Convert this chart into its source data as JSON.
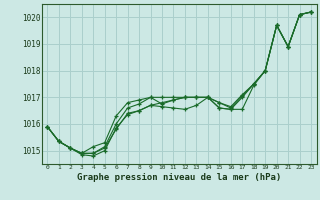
{
  "title": "Graphe pression niveau de la mer (hPa)",
  "xlabel": "Graphe pression niveau de la mer (hPa)",
  "x_ticks": [
    0,
    1,
    2,
    3,
    4,
    5,
    6,
    7,
    8,
    9,
    10,
    11,
    12,
    13,
    14,
    15,
    16,
    17,
    18,
    19,
    20,
    21,
    22,
    23
  ],
  "ylim": [
    1014.5,
    1020.5
  ],
  "xlim": [
    -0.5,
    23.5
  ],
  "yticks": [
    1015,
    1016,
    1017,
    1018,
    1019,
    1020
  ],
  "background_color": "#cce8e4",
  "grid_color": "#aacfcc",
  "line_color": "#1a6b2a",
  "series": [
    [
      1015.9,
      1015.35,
      1015.1,
      1014.9,
      1014.9,
      1015.1,
      1015.8,
      1016.4,
      1016.5,
      1016.7,
      1016.8,
      1016.9,
      1017.0,
      1017.0,
      1017.0,
      1016.8,
      1016.65,
      1017.1,
      1017.5,
      1018.0,
      1019.7,
      1018.9,
      1020.1,
      1020.2
    ],
    [
      1015.9,
      1015.35,
      1015.1,
      1014.85,
      1014.8,
      1015.0,
      1015.85,
      1016.35,
      1016.5,
      1016.7,
      1016.65,
      1016.6,
      1016.55,
      1016.7,
      1017.0,
      1016.6,
      1016.55,
      1017.0,
      1017.5,
      1018.0,
      1019.7,
      1018.9,
      1020.1,
      1020.2
    ],
    [
      1015.9,
      1015.35,
      1015.1,
      1014.9,
      1015.15,
      1015.3,
      1016.3,
      1016.8,
      1016.9,
      1017.0,
      1016.75,
      1016.9,
      1017.0,
      1017.0,
      1017.0,
      1016.6,
      1016.55,
      1016.55,
      1017.45,
      1018.0,
      1019.7,
      1018.9,
      1020.1,
      1020.2
    ],
    [
      1015.9,
      1015.35,
      1015.1,
      1014.9,
      1014.9,
      1015.15,
      1016.0,
      1016.6,
      1016.75,
      1017.0,
      1017.0,
      1017.0,
      1017.0,
      1017.0,
      1017.0,
      1016.8,
      1016.6,
      1017.05,
      1017.5,
      1018.0,
      1019.7,
      1018.9,
      1020.1,
      1020.2
    ]
  ]
}
